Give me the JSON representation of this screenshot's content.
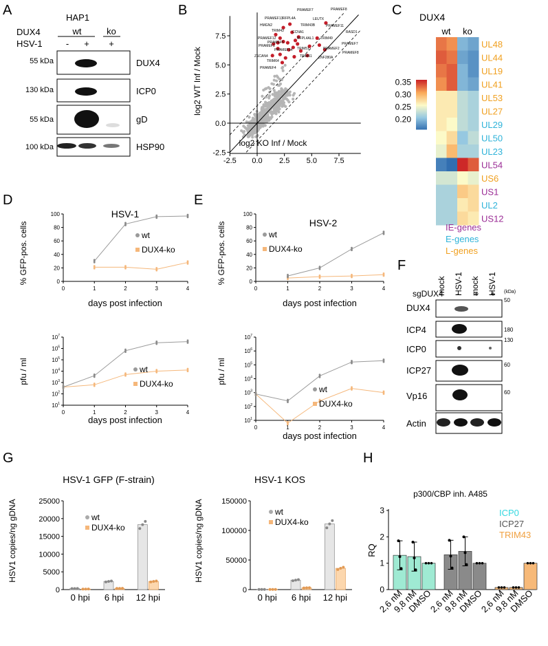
{
  "panel_letters": [
    "A",
    "B",
    "C",
    "D",
    "E",
    "F",
    "G",
    "H"
  ],
  "A": {
    "cell_line": "HAP1",
    "row_dux4": "DUX4",
    "row_hsv": "HSV-1",
    "wt": "wt",
    "ko": "ko",
    "lane_hsv": [
      "-",
      "+",
      "+"
    ],
    "markers": [
      "55 kDa",
      "130 kDa",
      "55 kDa",
      "100 kDa"
    ],
    "bands": [
      "DUX4",
      "ICP0",
      "gD",
      "HSP90"
    ]
  },
  "B": {
    "xlabel": "log2 KO Inf / Mock",
    "ylabel": "log2 WT Inf / Mock",
    "xticks": [
      "-2.5",
      "0.0",
      "2.5",
      "5.0",
      "7.5"
    ],
    "yticks": [
      "7.5",
      "5.0",
      "2.5",
      "0.0",
      "-2.5"
    ],
    "gene_labels": [
      "PRAMEF7",
      "PRAMEF8",
      "PRAMEF13",
      "RFPL4A",
      "LEUTX",
      "HMGN2",
      "TRIM43B",
      "PRAMEF11",
      "TRIM43",
      "CCNA1",
      "RASD1",
      "PRAMEF12",
      "PRAMEF5",
      "RFPL4AL1",
      "TRIM49",
      "PRAMEF1",
      "PRAMEF14",
      "TRIM51",
      "PRAMEF2",
      "ZSCAN4",
      "TRIM64",
      "TRIM51",
      "ZNF280A",
      "PRAMEF4"
    ]
  },
  "C": {
    "title": "DUX4",
    "col_labels": [
      "wt",
      "ko"
    ],
    "colorbar_ticks": [
      "0.35",
      "0.30",
      "0.25",
      "0.20"
    ],
    "genes": [
      {
        "name": "UL48",
        "cls": "L",
        "wt": [
          0.33,
          0.32
        ],
        "ko": [
          0.2,
          0.19
        ]
      },
      {
        "name": "UL44",
        "cls": "L",
        "wt": [
          0.34,
          0.33
        ],
        "ko": [
          0.19,
          0.18
        ]
      },
      {
        "name": "UL19",
        "cls": "L",
        "wt": [
          0.33,
          0.34
        ],
        "ko": [
          0.2,
          0.18
        ]
      },
      {
        "name": "UL41",
        "cls": "L",
        "wt": [
          0.32,
          0.34
        ],
        "ko": [
          0.2,
          0.19
        ]
      },
      {
        "name": "UL53",
        "cls": "L",
        "wt": [
          0.27,
          0.27
        ],
        "ko": [
          0.23,
          0.22
        ]
      },
      {
        "name": "UL27",
        "cls": "L",
        "wt": [
          0.27,
          0.27
        ],
        "ko": [
          0.23,
          0.22
        ]
      },
      {
        "name": "UL29",
        "cls": "E",
        "wt": [
          0.27,
          0.26
        ],
        "ko": [
          0.23,
          0.22
        ]
      },
      {
        "name": "UL50",
        "cls": "E",
        "wt": [
          0.26,
          0.28
        ],
        "ko": [
          0.21,
          0.23
        ]
      },
      {
        "name": "UL23",
        "cls": "E",
        "wt": [
          0.25,
          0.3
        ],
        "ko": [
          0.22,
          0.22
        ]
      },
      {
        "name": "UL54",
        "cls": "IE",
        "wt": [
          0.17,
          0.16
        ],
        "ko": [
          0.36,
          0.34
        ]
      },
      {
        "name": "US6",
        "cls": "L",
        "wt": [
          0.24,
          0.24
        ],
        "ko": [
          0.26,
          0.25
        ]
      },
      {
        "name": "US1",
        "cls": "IE",
        "wt": [
          0.22,
          0.22
        ],
        "ko": [
          0.29,
          0.28
        ]
      },
      {
        "name": "UL2",
        "cls": "E",
        "wt": [
          0.22,
          0.22
        ],
        "ko": [
          0.27,
          0.28
        ]
      },
      {
        "name": "US12",
        "cls": "IE",
        "wt": [
          0.22,
          0.22
        ],
        "ko": [
          0.28,
          0.27
        ]
      }
    ],
    "legend": [
      "IE-genes",
      "E-genes",
      "L-genes"
    ],
    "colors": {
      "IE": "#9b2d96",
      "E": "#2fb3d9",
      "L": "#f0a020"
    }
  },
  "D": {
    "title": "HSV-1",
    "top_ylabel": "% GFP-pos. cells",
    "bottom_ylabel": "pfu / ml",
    "xlabel": "days post infection",
    "legend": [
      "wt",
      "DUX4-ko"
    ],
    "pct_yticks": [
      "100",
      "80",
      "60",
      "40",
      "20",
      "0"
    ],
    "days": [
      0,
      1,
      2,
      3,
      4
    ],
    "pct_wt": [
      30,
      85,
      96,
      97
    ],
    "pct_ko": [
      21,
      21,
      18,
      28
    ],
    "pfu_wt_log": [
      2.6,
      3.6,
      5.8,
      6.5,
      6.6
    ],
    "pfu_ko_log": [
      2.6,
      2.8,
      3.7,
      4.0,
      4.1
    ]
  },
  "E": {
    "title": "HSV-2",
    "top_ylabel": "% GFP-pos. cells",
    "bottom_ylabel": "pfu / ml",
    "xlabel": "days post infection",
    "legend": [
      "wt",
      "DUX4-ko"
    ],
    "pct_yticks": [
      "100",
      "80",
      "60",
      "40",
      "20",
      "0"
    ],
    "days": [
      0,
      1,
      2,
      3,
      4
    ],
    "pct_wt": [
      8,
      20,
      48,
      72
    ],
    "pct_ko": [
      5,
      7,
      8,
      10
    ],
    "pfu_wt_log": [
      2.9,
      2.4,
      4.2,
      5.2,
      5.3
    ],
    "pfu_ko_log": [
      2.9,
      0.8,
      2.4,
      3.3,
      3.0
    ]
  },
  "F": {
    "sg_label": "sgDUX4",
    "kda_label": "(kDa)",
    "col_labels": [
      "mock",
      "HSV-1",
      "mock",
      "HSV-1"
    ],
    "sg_signs": [
      "-",
      "-",
      "+",
      "+"
    ],
    "bands": [
      "DUX4",
      "ICP4",
      "ICP0",
      "ICP27",
      "Vp16",
      "Actin"
    ],
    "markers": [
      "50",
      "180",
      "130",
      "60",
      "60"
    ]
  },
  "G": {
    "left_title": "HSV-1 GFP (F-strain)",
    "right_title": "HSV-1 KOS",
    "ylabel": "HSV1 copies/ng gDNA",
    "legend": [
      "wt",
      "DUX4-ko"
    ],
    "categories": [
      "0 hpi",
      "6 hpi",
      "12 hpi"
    ],
    "left_yticks": [
      "25000",
      "20000",
      "15000",
      "10000",
      "5000",
      "0"
    ],
    "right_yticks": [
      "150000",
      "100000",
      "50000",
      "0"
    ],
    "left_wt": [
      300,
      2300,
      18300
    ],
    "left_ko": [
      150,
      350,
      2300
    ],
    "right_wt": [
      300,
      16000,
      111000
    ],
    "right_ko": [
      300,
      3000,
      36000
    ]
  },
  "H": {
    "title": "p300/CBP inh. A485",
    "ylabel": "RQ",
    "yticks": [
      "3",
      "2",
      "1",
      "0"
    ],
    "legend": [
      "ICP0",
      "ICP27",
      "TRIM43"
    ],
    "categories": [
      "2,6 nM",
      "9,8 nM",
      "DMSO"
    ],
    "groups": [
      {
        "name": "ICP0",
        "color": "#9fead3",
        "values": [
          1.3,
          1.25,
          1.0
        ]
      },
      {
        "name": "ICP27",
        "color": "#8a8a8a",
        "values": [
          1.32,
          1.45,
          1.0
        ]
      },
      {
        "name": "TRIM43",
        "color": "#f7b978",
        "values": [
          0.08,
          0.08,
          1.0
        ]
      }
    ],
    "legend_colors": [
      "#34d8e0",
      "#555555",
      "#f0a040"
    ]
  }
}
